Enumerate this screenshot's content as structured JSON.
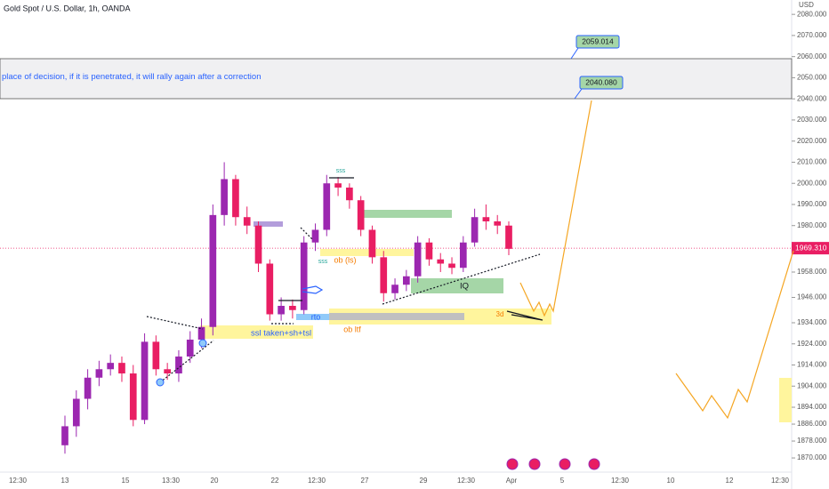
{
  "chart_data": {
    "type": "candlestick",
    "title": "Gold Spot / U.S. Dollar, 1h, OANDA",
    "currency": "USD",
    "up_color": "#9c27b0",
    "down_color": "#e91e63",
    "open": [
      1876,
      1885,
      1898,
      1908,
      1912,
      1915,
      1910,
      1888,
      1925,
      1912,
      1910,
      1918,
      1926,
      1932,
      1985,
      2002,
      1984,
      1980,
      1962,
      1938,
      1942,
      1940,
      1972,
      1978,
      2000,
      1998,
      1992,
      1978,
      1965,
      1948,
      1952,
      1956,
      1972,
      1964,
      1962,
      1960,
      1972,
      1984,
      1982,
      1980
    ],
    "high": [
      1890,
      1902,
      1912,
      1916,
      1919,
      1918,
      1914,
      1929,
      1928,
      1915,
      1921,
      1930,
      1936,
      1990,
      2010,
      2004,
      1989,
      1982,
      1964,
      1946,
      1945,
      1975,
      1981,
      2004,
      2003,
      2000,
      1994,
      1980,
      1968,
      1955,
      1959,
      1975,
      1974,
      1967,
      1965,
      1975,
      1988,
      1990,
      1985,
      1982
    ],
    "low": [
      1872,
      1880,
      1893,
      1904,
      1909,
      1906,
      1885,
      1886,
      1909,
      1907,
      1906,
      1915,
      1922,
      1928,
      1980,
      1980,
      1976,
      1958,
      1935,
      1935,
      1936,
      1938,
      1968,
      1975,
      1994,
      1988,
      1975,
      1962,
      1944,
      1945,
      1949,
      1953,
      1961,
      1958,
      1957,
      1958,
      1970,
      1978,
      1976,
      1966
    ],
    "close": [
      1885,
      1898,
      1908,
      1912,
      1915,
      1910,
      1888,
      1925,
      1912,
      1910,
      1918,
      1926,
      1932,
      1985,
      2002,
      1984,
      1980,
      1962,
      1938,
      1942,
      1940,
      1972,
      1978,
      2000,
      1998,
      1992,
      1978,
      1965,
      1948,
      1952,
      1956,
      1972,
      1964,
      1962,
      1960,
      1972,
      1984,
      1982,
      1980,
      1969
    ],
    "ylim": [
      1859.5,
      2086.8
    ],
    "yticks": [
      {
        "value": 2080,
        "label": "2080.000"
      },
      {
        "value": 2070,
        "label": "2070.000"
      },
      {
        "value": 2060,
        "label": "2060.000"
      },
      {
        "value": 2050,
        "label": "2050.000"
      },
      {
        "value": 2040,
        "label": "2040.000"
      },
      {
        "value": 2030,
        "label": "2030.000"
      },
      {
        "value": 2020,
        "label": "2020.000"
      },
      {
        "value": 2010,
        "label": "2010.000"
      },
      {
        "value": 2000,
        "label": "2000.000"
      },
      {
        "value": 1990,
        "label": "1990.000"
      },
      {
        "value": 1980,
        "label": "1980.000"
      },
      {
        "value": 1958,
        "label": "1958.000"
      },
      {
        "value": 1946,
        "label": "1946.000"
      },
      {
        "value": 1934,
        "label": "1934.000"
      },
      {
        "value": 1924,
        "label": "1924.000"
      },
      {
        "value": 1914,
        "label": "1914.000"
      },
      {
        "value": 1904,
        "label": "1904.000"
      },
      {
        "value": 1894,
        "label": "1894.000"
      },
      {
        "value": 1886,
        "label": "1886.000"
      },
      {
        "value": 1878,
        "label": "1878.000"
      },
      {
        "value": 1870,
        "label": "1870.000"
      }
    ],
    "xtick_labels": [
      "12:30",
      "13",
      "15",
      "13:30",
      "20",
      "22",
      "12:30",
      "27",
      "29",
      "12:30",
      "Apr",
      "5",
      "12:30",
      "10",
      "12",
      "12:30"
    ],
    "current_price": {
      "value": 1969.31,
      "label": "1969.310"
    },
    "levels": [
      {
        "value": 2059.014,
        "label": "2059.014"
      },
      {
        "value": 2040.08,
        "label": "2040.080"
      }
    ],
    "zone_note": "place of decision, if it is penetrated, it will rally again after a correction",
    "annotations": [
      "sss",
      "sss",
      "ob (ls)",
      "ssl taken+sh+tsl",
      "rto",
      "ob ltf",
      "IQ",
      "3d"
    ]
  }
}
